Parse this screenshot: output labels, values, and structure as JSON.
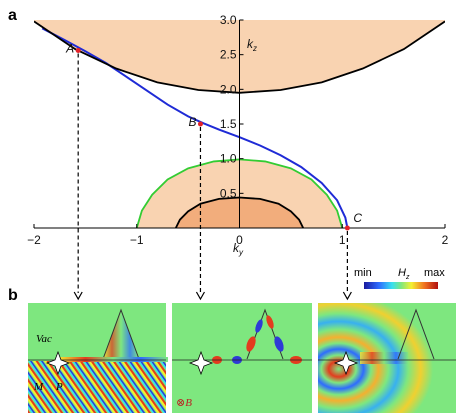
{
  "panels": {
    "a": "a",
    "b": "b"
  },
  "chart_data": {
    "type": "line",
    "xlabel": "k",
    "xlabel_sub": "y",
    "ylabel": "k",
    "ylabel_sub": "z",
    "xlim": [
      -2,
      2
    ],
    "ylim": [
      0,
      3
    ],
    "x_ticks": [
      "−2",
      "−1",
      "0",
      "1",
      "2"
    ],
    "y_ticks": [
      "0.5",
      "1.0",
      "1.5",
      "2.0",
      "2.5",
      "3.0"
    ],
    "series": [
      {
        "color": "#1f2bd6",
        "x": [
          -1.92,
          -1.7,
          -1.5,
          -1.3,
          -1.1,
          -0.9,
          -0.7,
          -0.5,
          -0.35,
          -0.2,
          0.0,
          0.2,
          0.4,
          0.6,
          0.8,
          0.95,
          1.03,
          1.05
        ],
        "y": [
          2.88,
          2.71,
          2.55,
          2.38,
          2.18,
          1.98,
          1.78,
          1.61,
          1.51,
          1.42,
          1.31,
          1.19,
          1.05,
          0.88,
          0.65,
          0.4,
          0.15,
          0.0
        ]
      },
      {
        "color": "#000000",
        "x": [
          -2.0,
          -1.6,
          -1.2,
          -0.8,
          -0.4,
          0.0,
          0.4,
          0.8,
          1.2,
          1.6,
          2.0
        ],
        "y": [
          2.98,
          2.58,
          2.3,
          2.1,
          1.99,
          1.95,
          1.99,
          2.1,
          2.3,
          2.58,
          2.98
        ]
      },
      {
        "color": "#33cc33",
        "x": [
          -1.0,
          -0.95,
          -0.85,
          -0.7,
          -0.5,
          -0.25,
          0.0,
          0.25,
          0.5,
          0.7,
          0.85,
          0.95,
          1.0
        ],
        "y": [
          0.0,
          0.25,
          0.48,
          0.7,
          0.86,
          0.96,
          0.99,
          0.96,
          0.86,
          0.7,
          0.48,
          0.25,
          0.0
        ]
      },
      {
        "color": "#000000",
        "x": [
          -0.62,
          -0.58,
          -0.5,
          -0.38,
          -0.2,
          0.0,
          0.2,
          0.38,
          0.5,
          0.58,
          0.62
        ],
        "y": [
          0.0,
          0.12,
          0.24,
          0.35,
          0.42,
          0.44,
          0.42,
          0.35,
          0.24,
          0.12,
          0.0
        ]
      }
    ],
    "points": [
      {
        "label": "A",
        "x": -1.57,
        "y": 2.56
      },
      {
        "label": "B",
        "x": -0.38,
        "y": 1.5
      },
      {
        "label": "C",
        "x": 1.05,
        "y": 0.0
      }
    ]
  },
  "colorbar": {
    "min": "min",
    "max": "max",
    "label": "H",
    "label_sub": "z"
  },
  "field_panels": {
    "vac": "Vac",
    "m": "M",
    "p": "P",
    "b_field": "⊗B"
  },
  "colors": {
    "outer_region": "#f9d3b1",
    "inner_region": "#f2ad7c",
    "field_bg": "#7ee77f",
    "marker": "#e3232a"
  }
}
